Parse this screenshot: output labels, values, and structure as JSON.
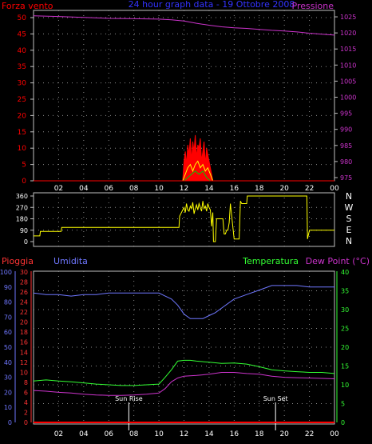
{
  "header": {
    "left_label": "Forza vento",
    "title": "24 hour graph data - 19 Ottobre 2008",
    "right_label": "Pressione"
  },
  "colors": {
    "background": "#000000",
    "frame": "#c0c0c0",
    "grid": "#8a8a8a",
    "pressure": "#cc33cc",
    "gust": "#ff0000",
    "wind_avg": "#ffff00",
    "wind_low": "#00cc00",
    "wind_dir": "#ffff00",
    "humidity": "#6f77ff",
    "temperature": "#33ff33",
    "dew_point": "#cc33cc",
    "rain": "#ff0000",
    "rain_axis_text": "#ff3333",
    "hum_axis_text": "#6f77ff",
    "temp_axis_text": "#33ff33",
    "sun_text": "#ffffff"
  },
  "chart_data": [
    {
      "type": "line",
      "id": "wind_pressure",
      "title": "24 hour graph data - 19 Ottobre 2008",
      "x_ticks": [
        "02",
        "04",
        "06",
        "08",
        "10",
        "12",
        "14",
        "16",
        "18",
        "20",
        "22",
        "00"
      ],
      "y_left_label": "Forza vento",
      "y_left_ticks": [
        "0",
        "5",
        "10",
        "15",
        "20",
        "25",
        "30",
        "35",
        "40",
        "45",
        "50"
      ],
      "y_left_lim": [
        0,
        50
      ],
      "y_right_label": "Pressione",
      "y_right_ticks": [
        "975",
        "980",
        "985",
        "990",
        "995",
        "1000",
        "1005",
        "1010",
        "1015",
        "1020",
        "1025"
      ],
      "y_right_lim": [
        974,
        1027
      ],
      "series": [
        {
          "name": "Pressione",
          "axis": "right",
          "x": [
            0,
            2,
            4,
            6,
            8,
            10,
            11,
            12,
            13,
            14,
            15,
            16,
            17,
            18,
            19,
            20,
            21,
            22,
            23,
            24
          ],
          "values": [
            1025.3,
            1025.1,
            1024.8,
            1024.5,
            1024.4,
            1024.3,
            1024.1,
            1023.7,
            1023.0,
            1022.4,
            1021.9,
            1021.6,
            1021.4,
            1021.1,
            1020.8,
            1020.6,
            1020.3,
            1019.9,
            1019.6,
            1019.3
          ]
        },
        {
          "name": "gust",
          "axis": "left",
          "x": [
            0,
            11.9,
            12.0,
            12.1,
            12.2,
            12.3,
            12.4,
            12.5,
            12.6,
            12.7,
            12.8,
            12.9,
            13.0,
            13.1,
            13.2,
            13.3,
            13.4,
            13.5,
            13.6,
            13.7,
            13.8,
            13.9,
            14.0,
            14.1,
            14.2,
            14.3,
            24
          ],
          "values": [
            0,
            0,
            6,
            9,
            5,
            11,
            8,
            13,
            6,
            12,
            9,
            14,
            7,
            11,
            10,
            13,
            6,
            9,
            12,
            5,
            10,
            8,
            6,
            4,
            2,
            0,
            0
          ]
        },
        {
          "name": "average",
          "axis": "left",
          "x": [
            0,
            11.9,
            12.1,
            12.3,
            12.5,
            12.7,
            12.9,
            13.1,
            13.3,
            13.5,
            13.7,
            13.9,
            14.1,
            14.3,
            24
          ],
          "values": [
            0,
            0,
            2,
            4,
            5,
            3,
            5,
            6,
            4,
            5,
            3,
            4,
            2,
            0,
            0
          ]
        },
        {
          "name": "low",
          "axis": "left",
          "x": [
            0,
            12.0,
            12.3,
            12.6,
            12.9,
            13.2,
            13.5,
            13.8,
            14.1,
            24
          ],
          "values": [
            0,
            0,
            1,
            2,
            3,
            2,
            3,
            1,
            0,
            0
          ]
        }
      ]
    },
    {
      "type": "line",
      "id": "wind_direction",
      "x_ticks": [
        "02",
        "04",
        "06",
        "08",
        "10",
        "12",
        "14",
        "16",
        "18",
        "20",
        "22",
        "00"
      ],
      "y_ticks": [
        "0",
        "90",
        "180",
        "270",
        "360"
      ],
      "y_lim": [
        0,
        360
      ],
      "compass_labels": [
        "N",
        "W",
        "S",
        "E",
        "N"
      ],
      "series": [
        {
          "name": "direction",
          "x": [
            0,
            0.5,
            0.55,
            2.2,
            2.25,
            11.6,
            11.65,
            12.0,
            12.1,
            12.2,
            12.3,
            12.4,
            12.5,
            12.6,
            12.7,
            12.8,
            12.9,
            13.0,
            13.1,
            13.2,
            13.3,
            13.4,
            13.5,
            13.6,
            13.7,
            13.8,
            13.9,
            14.0,
            14.1,
            14.2,
            14.3,
            14.35,
            14.5,
            14.6,
            15.1,
            15.2,
            15.3,
            15.4,
            15.5,
            15.6,
            15.7,
            16.0,
            16.4,
            16.5,
            16.6,
            17.0,
            17.05,
            21.8,
            21.85,
            22.0,
            24
          ],
          "values": [
            45,
            45,
            80,
            80,
            112,
            112,
            200,
            270,
            230,
            300,
            250,
            240,
            280,
            260,
            310,
            220,
            260,
            290,
            250,
            300,
            270,
            240,
            320,
            260,
            280,
            240,
            300,
            270,
            250,
            120,
            230,
            0,
            0,
            180,
            180,
            60,
            60,
            90,
            90,
            150,
            300,
            20,
            20,
            320,
            300,
            300,
            360,
            360,
            20,
            90,
            90
          ]
        }
      ]
    },
    {
      "type": "line",
      "id": "temp_hum_rain",
      "x_ticks": [
        "02",
        "04",
        "06",
        "08",
        "10",
        "12",
        "14",
        "16",
        "18",
        "20",
        "22",
        "00"
      ],
      "sun_labels": [
        "Sun Rise",
        "Sun Set"
      ],
      "sun_events_x": [
        7.6,
        19.3
      ],
      "y_left1_label": "Pioggia",
      "y_left1_ticks": [
        "0",
        "2",
        "4",
        "6",
        "8",
        "10",
        "12",
        "14",
        "16",
        "18",
        "20",
        "22",
        "24",
        "26",
        "28",
        "30"
      ],
      "y_left2_label": "Umidita",
      "y_left2_ticks": [
        "0",
        "10",
        "20",
        "30",
        "40",
        "50",
        "60",
        "70",
        "80",
        "90",
        "100"
      ],
      "y_right_label": "Temperatura",
      "y_right2_label": "Dew Point (°C)",
      "y_right_ticks": [
        "0",
        "5",
        "10",
        "15",
        "20",
        "25",
        "30",
        "35",
        "40"
      ],
      "series": [
        {
          "name": "Umidita",
          "axis": "humidity",
          "x": [
            0,
            1,
            2,
            3,
            4,
            5,
            6,
            7,
            8,
            9,
            10,
            10.5,
            11,
            11.5,
            12,
            12.5,
            13,
            13.5,
            14,
            14.5,
            15,
            16,
            17,
            18,
            19,
            20,
            21,
            22,
            23,
            24
          ],
          "values": [
            86,
            85,
            85,
            84,
            85,
            85,
            86,
            86,
            86,
            86,
            86,
            84,
            82,
            78,
            72,
            69,
            69,
            69,
            71,
            73,
            76,
            82,
            85,
            88,
            91,
            91,
            91,
            90,
            90,
            90
          ]
        },
        {
          "name": "Temperatura",
          "axis": "temp",
          "x": [
            0,
            1,
            2,
            3,
            4,
            5,
            6,
            7,
            8,
            9,
            10,
            10.5,
            11,
            11.5,
            12,
            12.5,
            13,
            14,
            15,
            16,
            17,
            18,
            19,
            20,
            21,
            22,
            23,
            24
          ],
          "values": [
            11.0,
            11.3,
            11.0,
            10.8,
            10.5,
            10.2,
            10.0,
            9.8,
            9.8,
            10.0,
            10.2,
            12.0,
            14.0,
            16.3,
            16.5,
            16.5,
            16.3,
            16.0,
            15.7,
            15.8,
            15.5,
            14.8,
            14.0,
            13.7,
            13.5,
            13.3,
            13.3,
            13.0
          ]
        },
        {
          "name": "Dew Point",
          "axis": "temp",
          "x": [
            0,
            1,
            2,
            3,
            4,
            5,
            6,
            7,
            8,
            9,
            10,
            10.5,
            11,
            11.5,
            12,
            13,
            14,
            15,
            16,
            17,
            18,
            19,
            20,
            21,
            22,
            23,
            24
          ],
          "values": [
            8.5,
            8.3,
            8.0,
            7.8,
            7.5,
            7.3,
            7.2,
            7.2,
            7.3,
            7.5,
            7.8,
            9.0,
            10.8,
            11.8,
            12.3,
            12.5,
            12.8,
            13.3,
            13.3,
            13.0,
            12.8,
            12.3,
            12.0,
            11.9,
            11.8,
            11.7,
            11.6
          ]
        },
        {
          "name": "Pioggia",
          "axis": "rain",
          "x": [
            0,
            24
          ],
          "values": [
            0,
            0
          ]
        }
      ]
    }
  ]
}
